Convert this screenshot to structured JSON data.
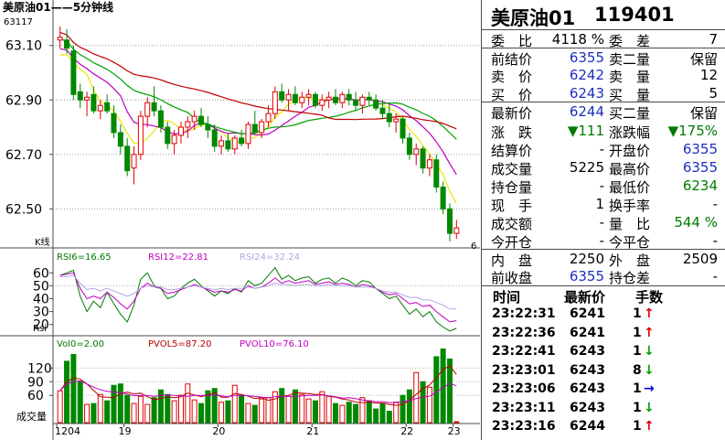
{
  "chart_data": [
    {
      "type": "candlestick",
      "title": "美原油01——5分钟线",
      "top_label": "63117",
      "ylabel": "K线",
      "y_ticks": [
        "63.10",
        "62.90",
        "62.70",
        "62.50"
      ],
      "ylim": [
        62.36,
        63.22
      ],
      "last_label": "6",
      "x_date_labels": [
        "1204",
        "19",
        "20",
        "21",
        "22",
        "23"
      ],
      "candles": [
        {
          "o": 63.12,
          "h": 63.17,
          "l": 63.09,
          "c": 63.13
        },
        {
          "o": 63.12,
          "h": 63.16,
          "l": 63.07,
          "c": 63.09
        },
        {
          "o": 63.08,
          "h": 63.1,
          "l": 62.9,
          "c": 62.92
        },
        {
          "o": 62.93,
          "h": 62.96,
          "l": 62.87,
          "c": 62.9
        },
        {
          "o": 62.9,
          "h": 62.93,
          "l": 62.84,
          "c": 62.91
        },
        {
          "o": 62.92,
          "h": 62.95,
          "l": 62.85,
          "c": 62.86
        },
        {
          "o": 62.86,
          "h": 62.9,
          "l": 62.83,
          "c": 62.88
        },
        {
          "o": 62.89,
          "h": 62.92,
          "l": 62.85,
          "c": 62.86
        },
        {
          "o": 62.85,
          "h": 62.88,
          "l": 62.76,
          "c": 62.78
        },
        {
          "o": 62.78,
          "h": 62.81,
          "l": 62.7,
          "c": 62.73
        },
        {
          "o": 62.73,
          "h": 62.76,
          "l": 62.62,
          "c": 62.64
        },
        {
          "o": 62.65,
          "h": 62.73,
          "l": 62.59,
          "c": 62.7
        },
        {
          "o": 62.7,
          "h": 62.86,
          "l": 62.68,
          "c": 62.84
        },
        {
          "o": 62.84,
          "h": 62.91,
          "l": 62.8,
          "c": 62.89
        },
        {
          "o": 62.89,
          "h": 62.95,
          "l": 62.84,
          "c": 62.86
        },
        {
          "o": 62.86,
          "h": 62.88,
          "l": 62.78,
          "c": 62.8
        },
        {
          "o": 62.8,
          "h": 62.82,
          "l": 62.72,
          "c": 62.74
        },
        {
          "o": 62.74,
          "h": 62.79,
          "l": 62.7,
          "c": 62.77
        },
        {
          "o": 62.77,
          "h": 62.82,
          "l": 62.74,
          "c": 62.8
        },
        {
          "o": 62.8,
          "h": 62.84,
          "l": 62.76,
          "c": 62.82
        },
        {
          "o": 62.82,
          "h": 62.86,
          "l": 62.79,
          "c": 62.84
        },
        {
          "o": 62.84,
          "h": 62.87,
          "l": 62.8,
          "c": 62.81
        },
        {
          "o": 62.81,
          "h": 62.84,
          "l": 62.76,
          "c": 62.79
        },
        {
          "o": 62.79,
          "h": 62.81,
          "l": 62.71,
          "c": 62.73
        },
        {
          "o": 62.73,
          "h": 62.77,
          "l": 62.7,
          "c": 62.75
        },
        {
          "o": 62.75,
          "h": 62.78,
          "l": 62.71,
          "c": 62.72
        },
        {
          "o": 62.72,
          "h": 62.77,
          "l": 62.7,
          "c": 62.76
        },
        {
          "o": 62.76,
          "h": 62.79,
          "l": 62.73,
          "c": 62.74
        },
        {
          "o": 62.74,
          "h": 62.82,
          "l": 62.72,
          "c": 62.81
        },
        {
          "o": 62.81,
          "h": 62.86,
          "l": 62.77,
          "c": 62.78
        },
        {
          "o": 62.78,
          "h": 62.83,
          "l": 62.76,
          "c": 62.82
        },
        {
          "o": 62.82,
          "h": 62.88,
          "l": 62.8,
          "c": 62.85
        },
        {
          "o": 62.85,
          "h": 62.95,
          "l": 62.83,
          "c": 62.93
        },
        {
          "o": 62.93,
          "h": 62.96,
          "l": 62.89,
          "c": 62.9
        },
        {
          "o": 62.9,
          "h": 62.94,
          "l": 62.86,
          "c": 62.92
        },
        {
          "o": 62.92,
          "h": 62.95,
          "l": 62.88,
          "c": 62.89
        },
        {
          "o": 62.89,
          "h": 62.93,
          "l": 62.87,
          "c": 62.91
        },
        {
          "o": 62.91,
          "h": 62.94,
          "l": 62.88,
          "c": 62.92
        },
        {
          "o": 62.92,
          "h": 62.93,
          "l": 62.87,
          "c": 62.88
        },
        {
          "o": 62.88,
          "h": 62.92,
          "l": 62.86,
          "c": 62.9
        },
        {
          "o": 62.9,
          "h": 62.93,
          "l": 62.87,
          "c": 62.91
        },
        {
          "o": 62.91,
          "h": 62.94,
          "l": 62.88,
          "c": 62.89
        },
        {
          "o": 62.89,
          "h": 62.93,
          "l": 62.87,
          "c": 62.92
        },
        {
          "o": 62.92,
          "h": 62.94,
          "l": 62.88,
          "c": 62.9
        },
        {
          "o": 62.9,
          "h": 62.93,
          "l": 62.86,
          "c": 62.88
        },
        {
          "o": 62.88,
          "h": 62.92,
          "l": 62.85,
          "c": 62.91
        },
        {
          "o": 62.91,
          "h": 62.93,
          "l": 62.88,
          "c": 62.9
        },
        {
          "o": 62.9,
          "h": 62.92,
          "l": 62.86,
          "c": 62.87
        },
        {
          "o": 62.87,
          "h": 62.9,
          "l": 62.83,
          "c": 62.85
        },
        {
          "o": 62.85,
          "h": 62.89,
          "l": 62.8,
          "c": 62.82
        },
        {
          "o": 62.82,
          "h": 62.85,
          "l": 62.78,
          "c": 62.83
        },
        {
          "o": 62.83,
          "h": 62.84,
          "l": 62.74,
          "c": 62.76
        },
        {
          "o": 62.76,
          "h": 62.78,
          "l": 62.68,
          "c": 62.7
        },
        {
          "o": 62.7,
          "h": 62.74,
          "l": 62.66,
          "c": 62.72
        },
        {
          "o": 62.72,
          "h": 62.73,
          "l": 62.63,
          "c": 62.65
        },
        {
          "o": 62.65,
          "h": 62.7,
          "l": 62.62,
          "c": 62.68
        },
        {
          "o": 62.68,
          "h": 62.7,
          "l": 62.56,
          "c": 62.58
        },
        {
          "o": 62.58,
          "h": 62.6,
          "l": 62.48,
          "c": 62.5
        },
        {
          "o": 62.5,
          "h": 62.52,
          "l": 62.38,
          "c": 62.41
        },
        {
          "o": 62.41,
          "h": 62.46,
          "l": 62.39,
          "c": 62.43
        }
      ],
      "ma_colors": [
        "#e8e800",
        "#c000c0",
        "#00a000",
        "#c00000"
      ]
    },
    {
      "type": "line",
      "label_rsi6": "RSI6=16.65",
      "label_rsi12": "RSI12=22.81",
      "label_rsi24": "RSI24=32.24",
      "ylabel": "Rsi",
      "y_ticks": [
        "60",
        "50",
        "40",
        "30",
        "20"
      ],
      "ylim": [
        12,
        68
      ],
      "series": [
        {
          "name": "RSI6",
          "color": "#007a00",
          "values": [
            58,
            60,
            62,
            42,
            30,
            38,
            33,
            45,
            36,
            28,
            22,
            35,
            55,
            60,
            50,
            48,
            40,
            42,
            48,
            52,
            55,
            50,
            46,
            42,
            46,
            44,
            48,
            45,
            54,
            50,
            52,
            58,
            64,
            55,
            58,
            54,
            56,
            57,
            52,
            55,
            56,
            52,
            56,
            54,
            50,
            54,
            53,
            48,
            44,
            40,
            42,
            35,
            28,
            32,
            26,
            30,
            22,
            18,
            15,
            17
          ]
        },
        {
          "name": "RSI12",
          "color": "#c000c0",
          "values": [
            58,
            59,
            60,
            48,
            40,
            42,
            40,
            45,
            41,
            36,
            32,
            38,
            48,
            52,
            49,
            48,
            44,
            45,
            47,
            49,
            51,
            49,
            47,
            45,
            46,
            45,
            47,
            46,
            50,
            48,
            49,
            52,
            56,
            52,
            54,
            52,
            53,
            54,
            51,
            52,
            53,
            51,
            52,
            51,
            49,
            51,
            50,
            48,
            45,
            43,
            44,
            40,
            36,
            37,
            34,
            35,
            30,
            26,
            22,
            23
          ]
        },
        {
          "name": "RSI24",
          "color": "#b0a8e0",
          "values": [
            57,
            57,
            58,
            52,
            47,
            48,
            46,
            48,
            46,
            44,
            42,
            44,
            48,
            50,
            49,
            49,
            47,
            47,
            48,
            49,
            50,
            49,
            48,
            47,
            48,
            47,
            48,
            48,
            49,
            48,
            49,
            50,
            52,
            51,
            51,
            50,
            51,
            51,
            50,
            50,
            51,
            50,
            50,
            50,
            49,
            49,
            49,
            48,
            46,
            45,
            45,
            43,
            41,
            41,
            39,
            39,
            37,
            35,
            32,
            32
          ]
        }
      ]
    },
    {
      "type": "bar",
      "label_vol": "Vol0=2.00",
      "label_pvol5": "PVOL5=87.20",
      "label_pvol10": "PVOL10=76.10",
      "ylabel": "成交量",
      "y_ticks": [
        "120",
        "90",
        "60"
      ],
      "ylim": [
        0,
        165
      ],
      "series": [
        {
          "name": "Vol",
          "values": [
            70,
            135,
            150,
            90,
            40,
            42,
            62,
            48,
            82,
            85,
            60,
            42,
            58,
            40,
            55,
            72,
            62,
            48,
            60,
            85,
            50,
            42,
            70,
            75,
            45,
            48,
            82,
            60,
            42,
            38,
            52,
            55,
            68,
            75,
            58,
            72,
            62,
            52,
            48,
            68,
            58,
            42,
            38,
            45,
            40,
            55,
            48,
            30,
            42,
            25,
            45,
            60,
            72,
            110,
            90,
            78,
            145,
            162,
            140,
            2
          ]
        },
        {
          "name": "PVOL5",
          "color": "#c00000",
          "values": [
            70,
            90,
            98,
            96,
            85,
            71,
            57,
            56,
            55,
            64,
            67,
            63,
            65,
            57,
            51,
            53,
            57,
            55,
            57,
            65,
            61,
            57,
            61,
            66,
            56,
            56,
            64,
            62,
            58,
            53,
            55,
            49,
            52,
            58,
            60,
            66,
            65,
            64,
            62,
            62,
            58,
            56,
            52,
            50,
            45,
            44,
            45,
            43,
            43,
            40,
            38,
            40,
            49,
            62,
            75,
            83,
            99,
            117,
            125,
            106
          ]
        },
        {
          "name": "PVOL10",
          "color": "#c000c0",
          "values": [
            70,
            85,
            90,
            92,
            85,
            78,
            72,
            69,
            67,
            66,
            63,
            59,
            60,
            60,
            58,
            60,
            61,
            60,
            59,
            58,
            60,
            60,
            60,
            61,
            59,
            57,
            60,
            60,
            59,
            58,
            56,
            55,
            57,
            58,
            58,
            58,
            59,
            60,
            60,
            61,
            59,
            57,
            54,
            55,
            53,
            50,
            48,
            46,
            46,
            44,
            44,
            46,
            48,
            53,
            56,
            58,
            67,
            77,
            86,
            81
          ]
        }
      ]
    }
  ],
  "panel": {
    "name": "美原油01",
    "code": "119401",
    "rows": [
      {
        "l1": "委　比",
        "v1": "4118 %",
        "v1c": "black",
        "l2": "委　差",
        "v2": "7",
        "v2c": "black"
      },
      {
        "l1": "前结价",
        "v1": "6355",
        "v1c": "blue",
        "l2": "卖二量",
        "v2": "保留",
        "v2c": "black"
      },
      {
        "l1": "卖　价",
        "v1": "6242",
        "v1c": "blue",
        "l2": "卖　量",
        "v2": "12",
        "v2c": "black"
      },
      {
        "l1": "买　价",
        "v1": "6243",
        "v1c": "blue",
        "l2": "买　量",
        "v2": "5",
        "v2c": "black"
      },
      {
        "l1": "最新价",
        "v1": "6244",
        "v1c": "blue",
        "l2": "买二量",
        "v2": "保留",
        "v2c": "black"
      },
      {
        "l1": "涨　跌",
        "v1": "▼111",
        "v1c": "green",
        "l2": "涨跌幅",
        "v2": "▼175%",
        "v2c": "green"
      },
      {
        "l1": "结算价",
        "v1": "-",
        "v1c": "black",
        "l2": "开盘价",
        "v2": "6355",
        "v2c": "blue"
      },
      {
        "l1": "成交量",
        "v1": "5225",
        "v1c": "black",
        "l2": "最高价",
        "v2": "6355",
        "v2c": "blue"
      },
      {
        "l1": "持仓量",
        "v1": "-",
        "v1c": "black",
        "l2": "最低价",
        "v2": "6234",
        "v2c": "green"
      },
      {
        "l1": "现　手",
        "v1": "1",
        "v1c": "black",
        "l2": "换手率",
        "v2": "-",
        "v2c": "black"
      },
      {
        "l1": "成交额",
        "v1": "-",
        "v1c": "black",
        "l2": "量　比",
        "v2": "544 %",
        "v2c": "green"
      },
      {
        "l1": "今开仓",
        "v1": "-",
        "v1c": "black",
        "l2": "今平仓",
        "v2": "-",
        "v2c": "black"
      },
      {
        "l1": "内　盘",
        "v1": "2250",
        "v1c": "black",
        "l2": "外　盘",
        "v2": "2509",
        "v2c": "black"
      },
      {
        "l1": "前收盘",
        "v1": "6355",
        "v1c": "blue",
        "l2": "持仓差",
        "v2": "-",
        "v2c": "black"
      }
    ],
    "tick_headers": {
      "time": "时间",
      "price": "最新价",
      "vol": "手数"
    },
    "ticks": [
      {
        "time": "23:22:31",
        "price": "6241",
        "vol": "1",
        "dir": "up"
      },
      {
        "time": "23:22:36",
        "price": "6241",
        "vol": "1",
        "dir": "up"
      },
      {
        "time": "23:22:41",
        "price": "6243",
        "vol": "1",
        "dir": "down"
      },
      {
        "time": "23:23:01",
        "price": "6243",
        "vol": "8",
        "dir": "down"
      },
      {
        "time": "23:23:06",
        "price": "6243",
        "vol": "1",
        "dir": "right"
      },
      {
        "time": "23:23:11",
        "price": "6243",
        "vol": "1",
        "dir": "down"
      },
      {
        "time": "23:23:16",
        "price": "6244",
        "vol": "1",
        "dir": "up"
      }
    ],
    "arrow_colors": {
      "up": "#e00000",
      "down": "#00a000",
      "right": "#0000e0"
    }
  }
}
